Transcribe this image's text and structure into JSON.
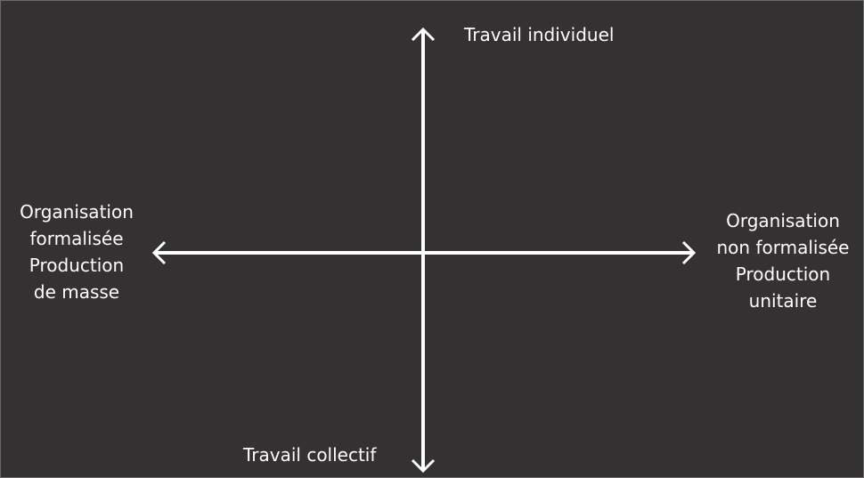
{
  "diagram": {
    "colors": {
      "background": "#333132",
      "axis": "#ffffff",
      "text": "#ffffff"
    },
    "axis_labels": {
      "top": "Travail individuel",
      "bottom": "Travail collectif",
      "left": [
        "Organisation",
        "formalisée",
        "Production",
        "de masse"
      ],
      "right": [
        "Organisation",
        "non formalisée",
        "Production",
        "unitaire"
      ]
    }
  }
}
